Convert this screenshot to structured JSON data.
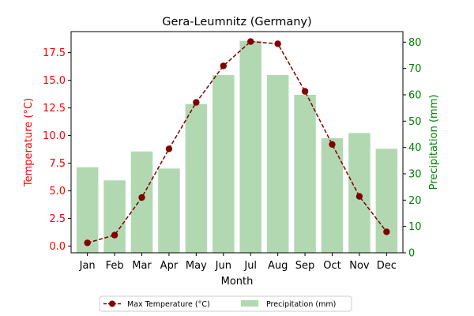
{
  "chart_data": {
    "type": "bar+line",
    "title": "Gera-Leumnitz (Germany)",
    "xlabel": "Month",
    "categories": [
      "Jan",
      "Feb",
      "Mar",
      "Apr",
      "May",
      "Jun",
      "Jul",
      "Aug",
      "Sep",
      "Oct",
      "Nov",
      "Dec"
    ],
    "left_axis": {
      "label": "Temperature (°C)",
      "ylim": [
        -0.6,
        19.4
      ],
      "ticks": [
        "0.0",
        "2.5",
        "5.0",
        "7.5",
        "10.0",
        "12.5",
        "15.0",
        "17.5"
      ],
      "color": "#ff0000"
    },
    "right_axis": {
      "label": "Precipitation (mm)",
      "ylim": [
        0,
        84
      ],
      "ticks": [
        "0",
        "10",
        "20",
        "30",
        "40",
        "50",
        "60",
        "70",
        "80"
      ],
      "color": "#008000"
    },
    "series": [
      {
        "name": "Max Temperature (°C)",
        "kind": "line",
        "axis": "left",
        "color": "#800000",
        "values": [
          0.3,
          1.0,
          4.4,
          8.8,
          13.0,
          16.3,
          18.5,
          18.3,
          14.0,
          9.2,
          4.5,
          1.3
        ]
      },
      {
        "name": "Precipitation (mm)",
        "kind": "bar",
        "axis": "right",
        "color": "#b2d8b2",
        "values": [
          32.5,
          27.5,
          38.5,
          32.0,
          56.5,
          67.5,
          80.5,
          67.5,
          60.0,
          43.5,
          45.5,
          39.5
        ]
      }
    ],
    "legend": {
      "placement": "bottom-center"
    },
    "grid": false
  }
}
